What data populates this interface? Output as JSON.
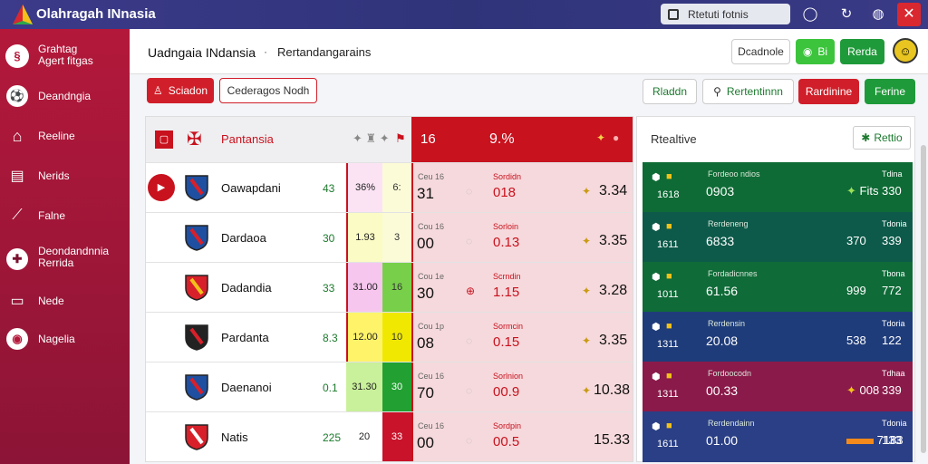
{
  "app": {
    "title": "Olahragah INnasia"
  },
  "topbar": {
    "search_text": "Rtetuti fotnis"
  },
  "sidebar": {
    "items": [
      {
        "label": "Grahtag\nAgert fitgas",
        "icon": "shield-logo-icon"
      },
      {
        "label": "Deandngia",
        "icon": "football-icon"
      },
      {
        "label": "Reeline",
        "icon": "home-icon"
      },
      {
        "label": "Nerids",
        "icon": "chart-icon"
      },
      {
        "label": "Falne",
        "icon": "trend-icon"
      },
      {
        "label": "Deondandnnia\nRerrida",
        "icon": "plus-icon"
      },
      {
        "label": "Nede",
        "icon": "card-icon"
      },
      {
        "label": "Nagelia",
        "icon": "globe-icon"
      }
    ]
  },
  "header": {
    "title": "Uadngaia INdansia",
    "separator": "·",
    "breadcrumb": "Rertandangarains",
    "btn_1": "Dcadnole",
    "btn_2": "Bi",
    "btn_3": "Rerda",
    "btn_4": "Sciadon",
    "btn_5": "Cederagos Nodh",
    "btn_6": "Rladdn",
    "btn_7": "Rertentinnn",
    "btn_8": "Rardinine",
    "btn_9": "Ferine"
  },
  "table": {
    "header_team": "Pantansia",
    "header_num": "16",
    "header_pct": "9.%",
    "rows": [
      {
        "team": "Oawapdani",
        "score": "43",
        "c1": "36%",
        "c2": "6:",
        "lbl_a": "Ceu 16",
        "big": "31",
        "lbl_b": "Sordidn",
        "val": "018",
        "odd": "3.34"
      },
      {
        "team": "Dardaoa",
        "score": "30",
        "c1": "1.93",
        "c2": "3",
        "lbl_a": "Cou 16",
        "big": "00",
        "lbl_b": "Sorloin",
        "val": "0.13",
        "odd": "3.35"
      },
      {
        "team": "Dadandia",
        "score": "33",
        "c1": "31.00",
        "c2": "16",
        "lbl_a": "Cou 1e",
        "big": "30",
        "lbl_b": "Scrndin",
        "val": "1.15",
        "odd": "3.28"
      },
      {
        "team": "Pardanta",
        "score": "8.3",
        "c1": "12.00",
        "c2": "10",
        "lbl_a": "Cou 1p",
        "big": "08",
        "lbl_b": "Sormcin",
        "val": "0.15",
        "odd": "3.35"
      },
      {
        "team": "Daenanoi",
        "score": "0.1",
        "c1": "31.30",
        "c2": "30",
        "lbl_a": "Ceu 16",
        "big": "70",
        "lbl_b": "Sorlnion",
        "val": "00.9",
        "odd": "10.38"
      },
      {
        "team": "Natis",
        "score": "225",
        "c1": "20",
        "c2": "33",
        "lbl_a": "Ceu 16",
        "big": "00",
        "lbl_b": "Sordpin",
        "val": "00.5",
        "odd": "15.33"
      }
    ],
    "cell_colors": [
      "#fbe3f4",
      "#fbfbc5",
      "#f7c6ef",
      "#fff36a",
      "#c9f09a",
      "#ffffff"
    ],
    "cell2_colors": [
      "#fbfbd8",
      "#fbfbd8",
      "#78d04a",
      "#f0e800",
      "#22a032",
      "#c8132a"
    ]
  },
  "right": {
    "title": "Rtealtive",
    "button": "Rettio",
    "rows": [
      {
        "lab": "Fordeoo ndios",
        "val": "0903",
        "mid": "Fits",
        "end": "330",
        "lab2": "Tdina",
        "num": "1618",
        "color": "#0e6b35"
      },
      {
        "lab": "Rerdeneng",
        "val": "6833",
        "mid": "370",
        "end": "339",
        "lab2": "Tdonia",
        "num": "1611",
        "color": "#0d5a4a"
      },
      {
        "lab": "Fordadicnnes",
        "val": "61.56",
        "mid": "999",
        "end": "772",
        "lab2": "Tbona",
        "num": "1011",
        "color": "#0f6b38"
      },
      {
        "lab": "Rerdensin",
        "val": "20.08",
        "mid": "538",
        "end": "122",
        "lab2": "Tdoria",
        "num": "1311",
        "color": "#1f3c7a"
      },
      {
        "lab": "Fordoocodn",
        "val": "00.33",
        "mid": "008",
        "end": "339",
        "lab2": "Tdhaa",
        "num": "1311",
        "color": "#8a1a4a"
      },
      {
        "lab": "Rerdendainn",
        "val": "01.00",
        "mid": "7183",
        "end": "133",
        "lab2": "Tdonia",
        "num": "1611",
        "color": "#2a3f85"
      }
    ]
  }
}
